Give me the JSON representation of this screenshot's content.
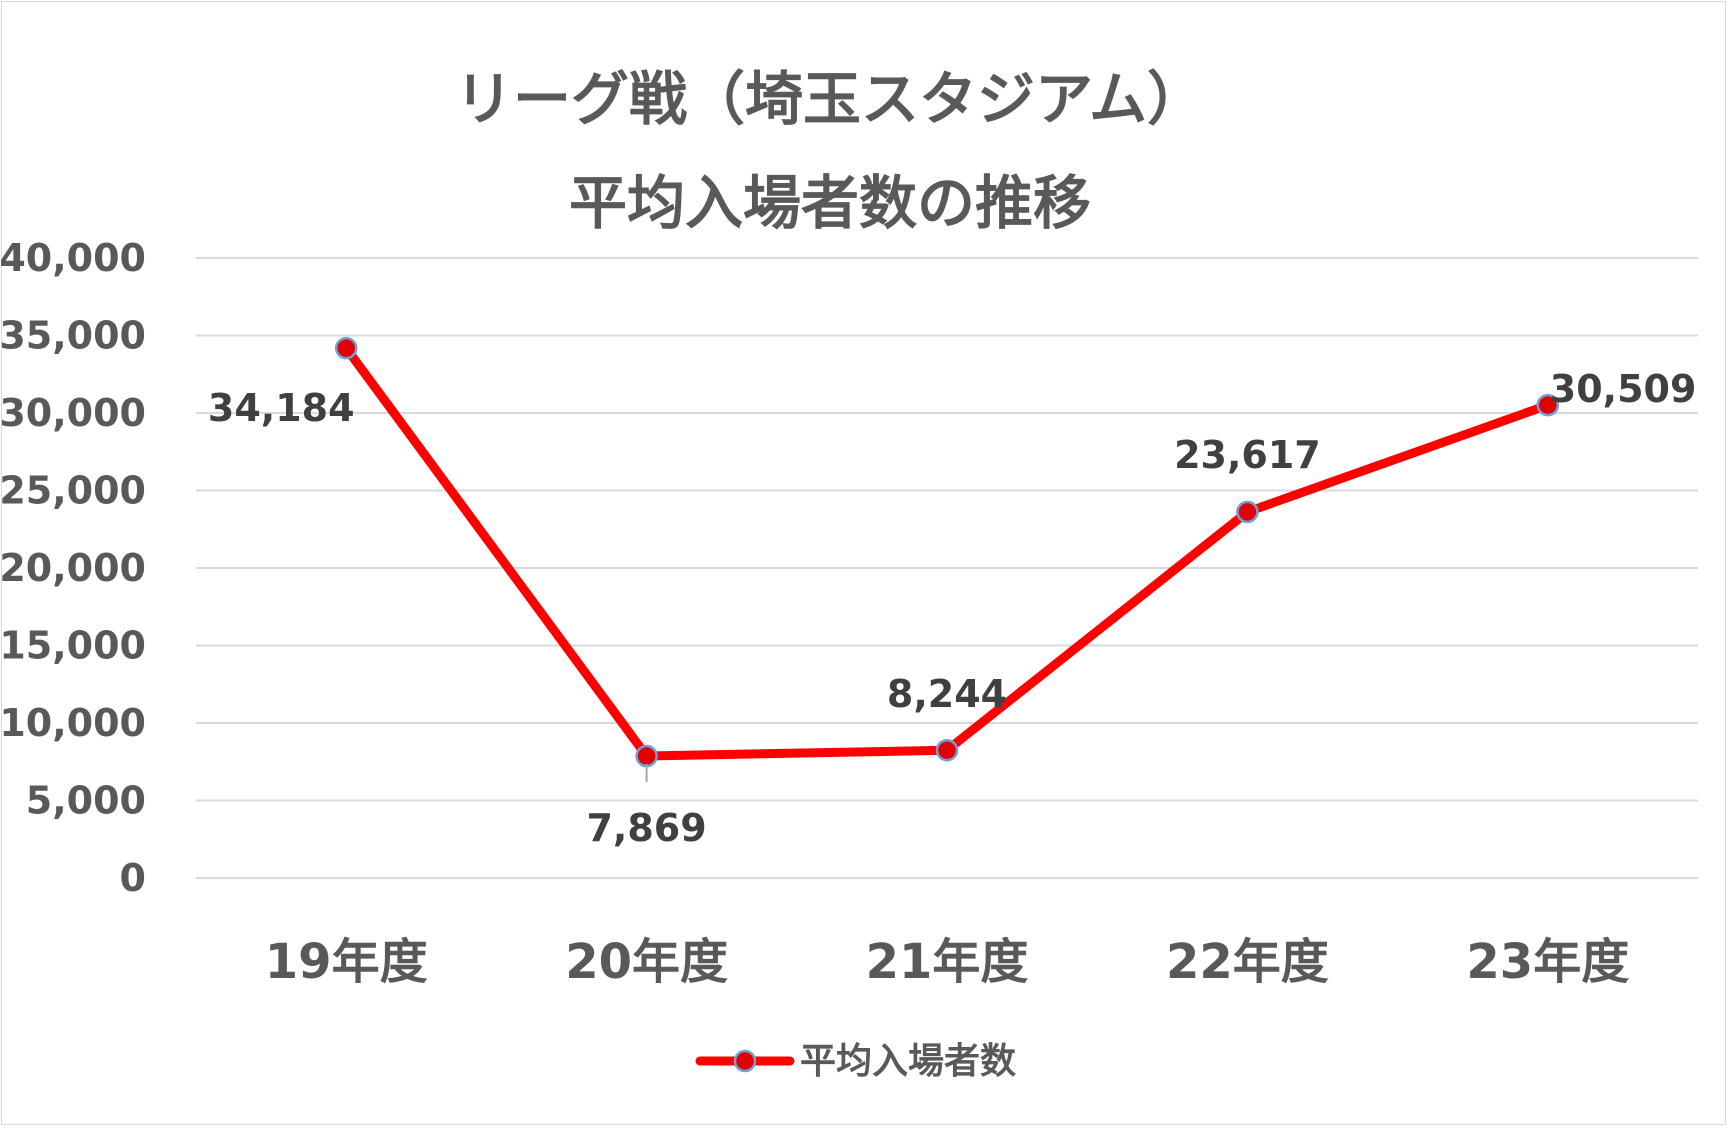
{
  "chart_data": {
    "type": "line",
    "title_lines": [
      "リーグ戦（埼玉スタジアム）",
      "平均入場者数の推移"
    ],
    "categories": [
      "19年度",
      "20年度",
      "21年度",
      "22年度",
      "23年度"
    ],
    "series": [
      {
        "name": "平均入場者数",
        "values": [
          34184,
          7869,
          8244,
          23617,
          30509
        ],
        "labels": [
          "34,184",
          "7,869",
          "8,244",
          "23,617",
          "30,509"
        ],
        "color": "#ff0000",
        "marker_color": "#e00000",
        "marker_edge": "#6f9fd8"
      }
    ],
    "y_ticks": [
      "0",
      "5,000",
      "10,000",
      "15,000",
      "20,000",
      "25,000",
      "30,000",
      "35,000",
      "40,000"
    ],
    "ylim": [
      0,
      40000
    ],
    "y_step": 5000,
    "grid": true,
    "legend_position": "bottom",
    "gridline_color": "#d9d9d9"
  }
}
